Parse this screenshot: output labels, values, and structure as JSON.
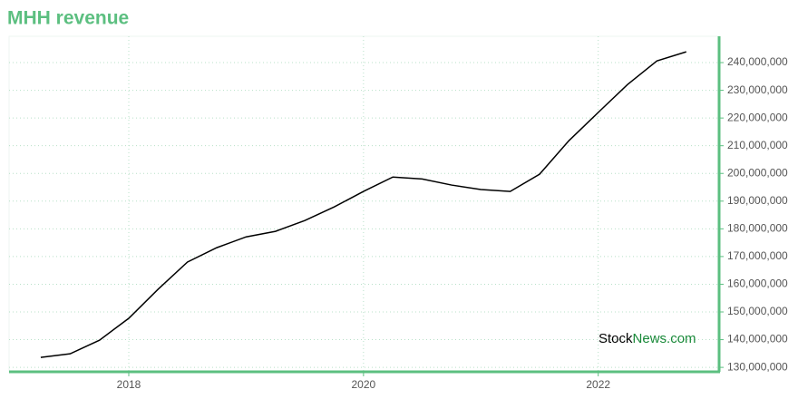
{
  "chart_data": {
    "type": "line",
    "title": "MHH revenue",
    "x": [
      2017.25,
      2017.5,
      2017.75,
      2018,
      2018.25,
      2018.5,
      2018.75,
      2019,
      2019.25,
      2019.5,
      2019.75,
      2020,
      2020.25,
      2020.5,
      2020.75,
      2021,
      2021.25,
      2021.5,
      2021.75,
      2022,
      2022.25,
      2022.5,
      2022.75
    ],
    "series": [
      {
        "name": "MHH revenue",
        "color": "#000000",
        "values": [
          133600000,
          134900000,
          139800000,
          147700000,
          158200000,
          168000000,
          173200000,
          177100000,
          179100000,
          183000000,
          187900000,
          193500000,
          198700000,
          198000000,
          195800000,
          194200000,
          193500000,
          199700000,
          211800000,
          222000000,
          232100000,
          240600000,
          243900000
        ]
      }
    ],
    "xlim": [
      2016.98,
      2023.03
    ],
    "xticks": [
      2018,
      2020,
      2022
    ],
    "ylim": [
      128400000,
      249500000
    ],
    "yticks": [
      {
        "value": 130000000,
        "label": "130,000,000"
      },
      {
        "value": 140000000,
        "label": "140,000,000"
      },
      {
        "value": 150000000,
        "label": "150,000,000"
      },
      {
        "value": 160000000,
        "label": "160,000,000"
      },
      {
        "value": 170000000,
        "label": "170,000,000"
      },
      {
        "value": 180000000,
        "label": "180,000,000"
      },
      {
        "value": 190000000,
        "label": "190,000,000"
      },
      {
        "value": 200000000,
        "label": "200,000,000"
      },
      {
        "value": 210000000,
        "label": "210,000,000"
      },
      {
        "value": 220000000,
        "label": "220,000,000"
      },
      {
        "value": 230000000,
        "label": "230,000,000"
      },
      {
        "value": 240000000,
        "label": "240,000,000"
      }
    ],
    "grid": true,
    "axis_color": "#5cbf80",
    "watermark": {
      "first": "Stock",
      "second": "News.com"
    }
  }
}
